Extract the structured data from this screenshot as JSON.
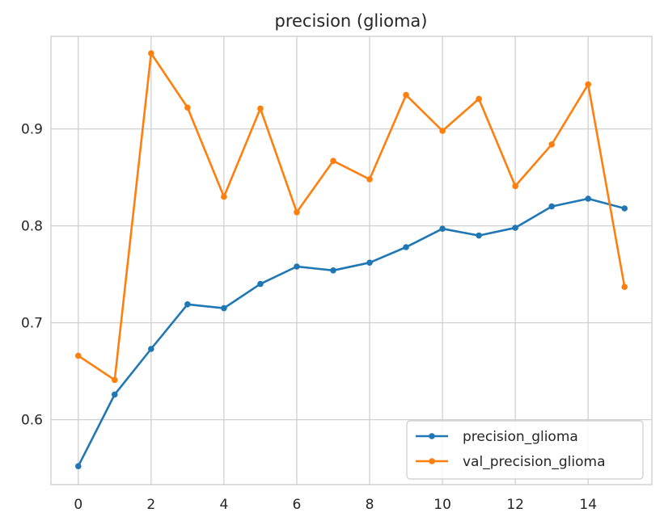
{
  "chart_data": {
    "type": "line",
    "title": "precision (glioma)",
    "xlabel": "",
    "ylabel": "",
    "xlim": [
      -0.75,
      15.75
    ],
    "ylim": [
      0.533,
      0.9955
    ],
    "xticks": [
      0,
      2,
      4,
      6,
      8,
      10,
      12,
      14
    ],
    "xtick_labels": [
      "0",
      "2",
      "4",
      "6",
      "8",
      "10",
      "12",
      "14"
    ],
    "yticks": [
      0.6,
      0.7,
      0.8,
      0.9
    ],
    "ytick_labels": [
      "0.6",
      "0.7",
      "0.8",
      "0.9"
    ],
    "grid": true,
    "legend_position": "lower-right",
    "x": [
      0,
      1,
      2,
      3,
      4,
      5,
      6,
      7,
      8,
      9,
      10,
      11,
      12,
      13,
      14,
      15
    ],
    "series": [
      {
        "name": "precision_glioma",
        "color": "#1f77b4",
        "values": [
          0.552,
          0.626,
          0.673,
          0.719,
          0.715,
          0.74,
          0.758,
          0.754,
          0.762,
          0.778,
          0.797,
          0.79,
          0.798,
          0.82,
          0.828,
          0.818
        ]
      },
      {
        "name": "val_precision_glioma",
        "color": "#ff7f0e",
        "values": [
          0.666,
          0.641,
          0.978,
          0.922,
          0.83,
          0.921,
          0.814,
          0.867,
          0.848,
          0.935,
          0.898,
          0.931,
          0.841,
          0.884,
          0.946,
          0.737
        ]
      }
    ]
  }
}
